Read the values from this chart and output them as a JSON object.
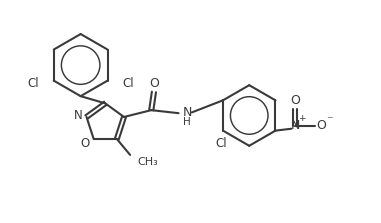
{
  "bg_color": "#ffffff",
  "line_color": "#3a3a3a",
  "line_width": 1.5,
  "figsize": [
    3.81,
    2.23
  ],
  "dpi": 100,
  "xlim": [
    0,
    10
  ],
  "ylim": [
    0,
    5.85
  ]
}
